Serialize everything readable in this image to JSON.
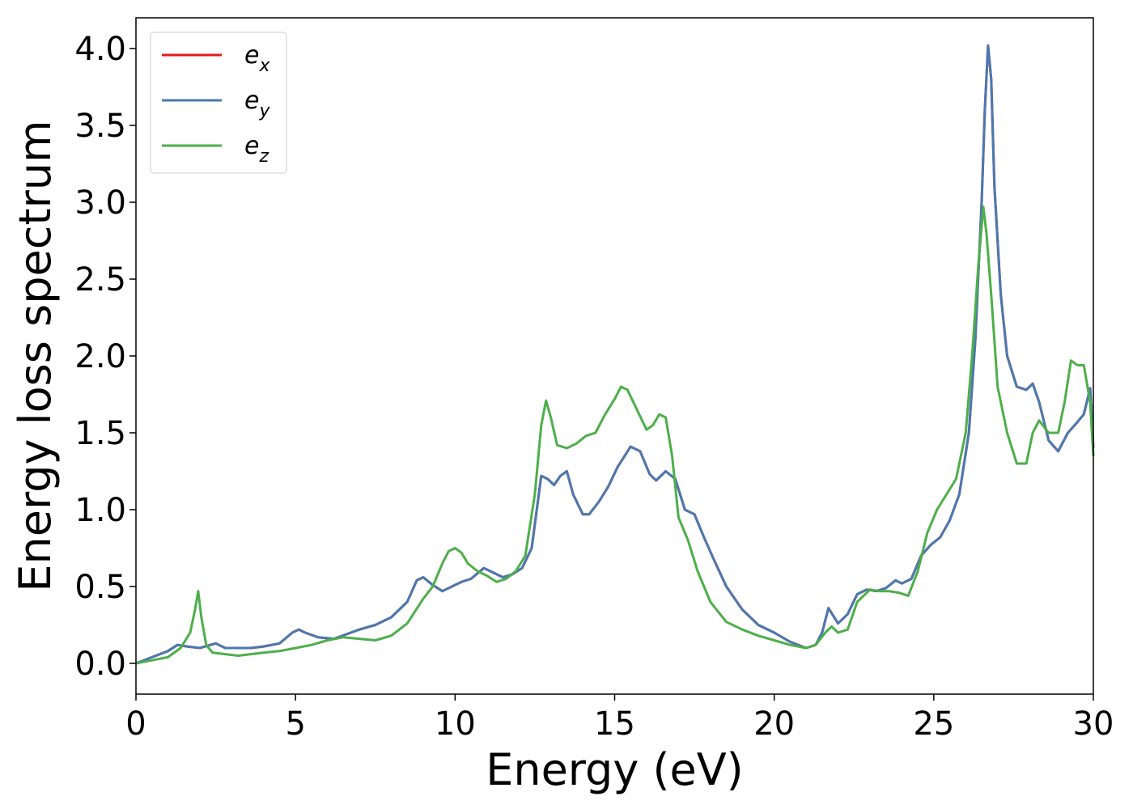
{
  "chart_data": {
    "type": "line",
    "title": "",
    "xlabel": "Energy (eV)",
    "ylabel": "Energy loss spectrum",
    "xlim": [
      0,
      30
    ],
    "ylim": [
      -0.2,
      4.2
    ],
    "xticks": [
      0,
      5,
      10,
      15,
      20,
      25,
      30
    ],
    "yticks": [
      0.0,
      0.5,
      1.0,
      1.5,
      2.0,
      2.5,
      3.0,
      3.5,
      4.0
    ],
    "xtick_labels": [
      "0",
      "5",
      "10",
      "15",
      "20",
      "25",
      "30"
    ],
    "ytick_labels": [
      "0.0",
      "0.5",
      "1.0",
      "1.5",
      "2.0",
      "2.5",
      "3.0",
      "3.5",
      "4.0"
    ],
    "grid": false,
    "legend_position": "top-left",
    "series": [
      {
        "name": "e",
        "subscript": "x",
        "color": "#e41a1c",
        "x": [
          0,
          0.5,
          1,
          1.3,
          1.6,
          2,
          2.5,
          2.8,
          3.2,
          3.6,
          4,
          4.5,
          4.9,
          5.1,
          5.3,
          5.7,
          6.2,
          6.6,
          7,
          7.5,
          8,
          8.5,
          8.8,
          9,
          9.3,
          9.6,
          9.9,
          10.2,
          10.5,
          10.9,
          11.2,
          11.5,
          11.8,
          12.1,
          12.4,
          12.7,
          12.9,
          13.1,
          13.3,
          13.5,
          13.7,
          14,
          14.2,
          14.5,
          14.8,
          15.1,
          15.5,
          15.8,
          16.1,
          16.3,
          16.6,
          16.9,
          17.2,
          17.5,
          17.8,
          18.1,
          18.5,
          19,
          19.5,
          20,
          20.5,
          21,
          21.3,
          21.5,
          21.7,
          22,
          22.3,
          22.6,
          22.9,
          23.2,
          23.5,
          23.8,
          24,
          24.3,
          24.6,
          24.9,
          25.2,
          25.5,
          25.8,
          26.1,
          26.3,
          26.5,
          26.6,
          26.7,
          26.8,
          26.9,
          27.1,
          27.3,
          27.6,
          27.9,
          28.1,
          28.3,
          28.6,
          28.9,
          29.2,
          29.5,
          29.7,
          29.9,
          30
        ],
        "values": [
          0,
          0.04,
          0.08,
          0.12,
          0.11,
          0.1,
          0.13,
          0.1,
          0.1,
          0.1,
          0.11,
          0.13,
          0.2,
          0.22,
          0.2,
          0.17,
          0.16,
          0.19,
          0.22,
          0.25,
          0.3,
          0.4,
          0.54,
          0.56,
          0.51,
          0.47,
          0.5,
          0.53,
          0.55,
          0.62,
          0.59,
          0.56,
          0.58,
          0.62,
          0.75,
          1.22,
          1.2,
          1.16,
          1.22,
          1.25,
          1.1,
          0.97,
          0.97,
          1.05,
          1.15,
          1.28,
          1.41,
          1.38,
          1.23,
          1.19,
          1.25,
          1.2,
          1.0,
          0.97,
          0.82,
          0.68,
          0.5,
          0.35,
          0.25,
          0.2,
          0.14,
          0.1,
          0.12,
          0.2,
          0.36,
          0.26,
          0.32,
          0.45,
          0.48,
          0.47,
          0.49,
          0.54,
          0.52,
          0.55,
          0.7,
          0.77,
          0.82,
          0.93,
          1.1,
          1.5,
          2.1,
          3.0,
          3.6,
          4.02,
          3.8,
          3.1,
          2.4,
          2.0,
          1.8,
          1.78,
          1.82,
          1.7,
          1.45,
          1.38,
          1.5,
          1.57,
          1.62,
          1.79,
          1.4
        ]
      },
      {
        "name": "e",
        "subscript": "y",
        "color": "#4a79b0",
        "x": [
          0,
          0.5,
          1,
          1.3,
          1.6,
          2,
          2.5,
          2.8,
          3.2,
          3.6,
          4,
          4.5,
          4.9,
          5.1,
          5.3,
          5.7,
          6.2,
          6.6,
          7,
          7.5,
          8,
          8.5,
          8.8,
          9,
          9.3,
          9.6,
          9.9,
          10.2,
          10.5,
          10.9,
          11.2,
          11.5,
          11.8,
          12.1,
          12.4,
          12.7,
          12.9,
          13.1,
          13.3,
          13.5,
          13.7,
          14,
          14.2,
          14.5,
          14.8,
          15.1,
          15.5,
          15.8,
          16.1,
          16.3,
          16.6,
          16.9,
          17.2,
          17.5,
          17.8,
          18.1,
          18.5,
          19,
          19.5,
          20,
          20.5,
          21,
          21.3,
          21.5,
          21.7,
          22,
          22.3,
          22.6,
          22.9,
          23.2,
          23.5,
          23.8,
          24,
          24.3,
          24.6,
          24.9,
          25.2,
          25.5,
          25.8,
          26.1,
          26.3,
          26.5,
          26.6,
          26.7,
          26.8,
          26.9,
          27.1,
          27.3,
          27.6,
          27.9,
          28.1,
          28.3,
          28.6,
          28.9,
          29.2,
          29.5,
          29.7,
          29.9,
          30
        ],
        "values": [
          0,
          0.04,
          0.08,
          0.12,
          0.11,
          0.1,
          0.13,
          0.1,
          0.1,
          0.1,
          0.11,
          0.13,
          0.2,
          0.22,
          0.2,
          0.17,
          0.16,
          0.19,
          0.22,
          0.25,
          0.3,
          0.4,
          0.54,
          0.56,
          0.51,
          0.47,
          0.5,
          0.53,
          0.55,
          0.62,
          0.59,
          0.56,
          0.58,
          0.62,
          0.75,
          1.22,
          1.2,
          1.16,
          1.22,
          1.25,
          1.1,
          0.97,
          0.97,
          1.05,
          1.15,
          1.28,
          1.41,
          1.38,
          1.23,
          1.19,
          1.25,
          1.2,
          1.0,
          0.97,
          0.82,
          0.68,
          0.5,
          0.35,
          0.25,
          0.2,
          0.14,
          0.1,
          0.12,
          0.2,
          0.36,
          0.26,
          0.32,
          0.45,
          0.48,
          0.47,
          0.49,
          0.54,
          0.52,
          0.55,
          0.7,
          0.77,
          0.82,
          0.93,
          1.1,
          1.5,
          2.1,
          3.0,
          3.6,
          4.02,
          3.8,
          3.1,
          2.4,
          2.0,
          1.8,
          1.78,
          1.82,
          1.7,
          1.45,
          1.38,
          1.5,
          1.57,
          1.62,
          1.79,
          1.4
        ]
      },
      {
        "name": "e",
        "subscript": "z",
        "color": "#4daf4a",
        "x": [
          0,
          0.5,
          1,
          1.4,
          1.7,
          1.85,
          1.95,
          2.05,
          2.2,
          2.4,
          2.8,
          3.2,
          3.6,
          4,
          4.5,
          5,
          5.5,
          6,
          6.5,
          7,
          7.5,
          8,
          8.5,
          9,
          9.3,
          9.6,
          9.8,
          10,
          10.2,
          10.4,
          10.7,
          11,
          11.3,
          11.6,
          11.9,
          12.2,
          12.5,
          12.7,
          12.85,
          13,
          13.2,
          13.5,
          13.8,
          14.1,
          14.4,
          14.7,
          15,
          15.2,
          15.4,
          15.7,
          16,
          16.2,
          16.4,
          16.6,
          16.8,
          17,
          17.3,
          17.6,
          18,
          18.5,
          19,
          19.5,
          20,
          20.5,
          21,
          21.3,
          21.6,
          21.8,
          22,
          22.3,
          22.6,
          23,
          23.3,
          23.6,
          23.9,
          24.2,
          24.5,
          24.8,
          25.1,
          25.4,
          25.7,
          26,
          26.2,
          26.4,
          26.55,
          26.65,
          26.8,
          27,
          27.3,
          27.6,
          27.9,
          28.1,
          28.3,
          28.6,
          28.9,
          29.1,
          29.3,
          29.5,
          29.7,
          29.9,
          30
        ],
        "values": [
          0,
          0.02,
          0.04,
          0.1,
          0.2,
          0.35,
          0.47,
          0.3,
          0.12,
          0.07,
          0.06,
          0.05,
          0.06,
          0.07,
          0.08,
          0.1,
          0.12,
          0.15,
          0.17,
          0.16,
          0.15,
          0.18,
          0.26,
          0.42,
          0.5,
          0.65,
          0.73,
          0.75,
          0.72,
          0.65,
          0.6,
          0.57,
          0.53,
          0.55,
          0.6,
          0.7,
          1.1,
          1.55,
          1.71,
          1.6,
          1.42,
          1.4,
          1.43,
          1.48,
          1.5,
          1.62,
          1.72,
          1.8,
          1.78,
          1.65,
          1.52,
          1.55,
          1.62,
          1.6,
          1.35,
          0.95,
          0.8,
          0.6,
          0.4,
          0.27,
          0.22,
          0.18,
          0.15,
          0.12,
          0.1,
          0.12,
          0.2,
          0.24,
          0.2,
          0.22,
          0.4,
          0.48,
          0.47,
          0.47,
          0.46,
          0.44,
          0.6,
          0.85,
          1.0,
          1.1,
          1.2,
          1.5,
          2.0,
          2.6,
          2.97,
          2.8,
          2.4,
          1.8,
          1.5,
          1.3,
          1.3,
          1.5,
          1.58,
          1.5,
          1.5,
          1.7,
          1.97,
          1.94,
          1.94,
          1.7,
          1.35
        ]
      }
    ]
  }
}
